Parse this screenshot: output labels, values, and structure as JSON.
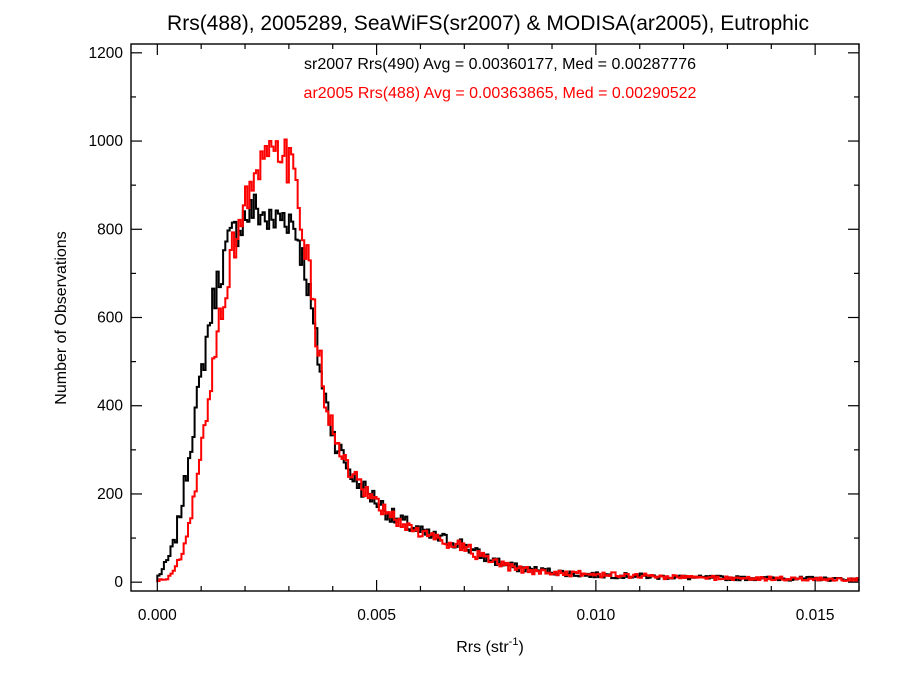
{
  "chart_data": {
    "type": "line",
    "subtype": "step-histogram",
    "title": "Rrs(488), 2005289, SeaWiFS(sr2007) & MODISA(ar2005), Eutrophic",
    "xlabel": "Rrs (str",
    "xlabel_sup": "-1",
    "xlabel_close": ")",
    "ylabel": "Number of Observations",
    "xlim": [
      -0.0006,
      0.016
    ],
    "ylim": [
      -20,
      1220
    ],
    "x_ticks": [
      0.0,
      0.005,
      0.01,
      0.015
    ],
    "x_tick_labels": [
      "0.000",
      "0.005",
      "0.010",
      "0.015"
    ],
    "y_ticks": [
      0,
      200,
      400,
      600,
      800,
      1000,
      1200
    ],
    "y_tick_labels": [
      "0",
      "200",
      "400",
      "600",
      "800",
      "1000",
      "1200"
    ],
    "grid": false,
    "legend": "top-center",
    "series": [
      {
        "name": "sr2007 Rrs(490)",
        "label": "sr2007 Rrs(490) Avg = 0.00360177, Med = 0.00287776",
        "color": "#000000",
        "points": [
          [
            0.0,
            10
          ],
          [
            0.0002,
            40
          ],
          [
            0.0004,
            90
          ],
          [
            0.0006,
            200
          ],
          [
            0.0008,
            340
          ],
          [
            0.001,
            460
          ],
          [
            0.0012,
            600
          ],
          [
            0.0014,
            690
          ],
          [
            0.0016,
            760
          ],
          [
            0.0018,
            800
          ],
          [
            0.002,
            830
          ],
          [
            0.0022,
            845
          ],
          [
            0.0024,
            835
          ],
          [
            0.0026,
            810
          ],
          [
            0.0028,
            830
          ],
          [
            0.003,
            830
          ],
          [
            0.0032,
            790
          ],
          [
            0.0034,
            700
          ],
          [
            0.0036,
            560
          ],
          [
            0.0038,
            430
          ],
          [
            0.004,
            340
          ],
          [
            0.0042,
            290
          ],
          [
            0.0044,
            250
          ],
          [
            0.0046,
            220
          ],
          [
            0.0048,
            205
          ],
          [
            0.005,
            185
          ],
          [
            0.0052,
            165
          ],
          [
            0.0054,
            145
          ],
          [
            0.0056,
            135
          ],
          [
            0.0058,
            125
          ],
          [
            0.006,
            112
          ],
          [
            0.0062,
            105
          ],
          [
            0.0064,
            100
          ],
          [
            0.0066,
            95
          ],
          [
            0.0068,
            92
          ],
          [
            0.007,
            85
          ],
          [
            0.0072,
            70
          ],
          [
            0.0074,
            60
          ],
          [
            0.0076,
            52
          ],
          [
            0.0078,
            45
          ],
          [
            0.008,
            38
          ],
          [
            0.0082,
            33
          ],
          [
            0.0084,
            30
          ],
          [
            0.0086,
            28
          ],
          [
            0.0088,
            26
          ],
          [
            0.009,
            24
          ],
          [
            0.0092,
            22
          ],
          [
            0.0094,
            20
          ],
          [
            0.0096,
            18
          ],
          [
            0.0098,
            17
          ],
          [
            0.01,
            16
          ],
          [
            0.0102,
            16
          ],
          [
            0.0104,
            15
          ],
          [
            0.0106,
            15
          ],
          [
            0.0108,
            14
          ],
          [
            0.011,
            14
          ],
          [
            0.0112,
            13
          ],
          [
            0.0114,
            12
          ],
          [
            0.0116,
            12
          ],
          [
            0.0118,
            11
          ],
          [
            0.012,
            11
          ],
          [
            0.0122,
            10
          ],
          [
            0.0124,
            10
          ],
          [
            0.0126,
            10
          ],
          [
            0.0128,
            10
          ],
          [
            0.013,
            9
          ],
          [
            0.0132,
            9
          ],
          [
            0.0134,
            9
          ],
          [
            0.0136,
            9
          ],
          [
            0.0138,
            9
          ],
          [
            0.014,
            8
          ],
          [
            0.0142,
            8
          ],
          [
            0.0144,
            8
          ],
          [
            0.0146,
            8
          ],
          [
            0.0148,
            8
          ],
          [
            0.015,
            8
          ],
          [
            0.0152,
            7
          ],
          [
            0.0154,
            7
          ],
          [
            0.0156,
            7
          ],
          [
            0.0158,
            7
          ],
          [
            0.016,
            7
          ]
        ]
      },
      {
        "name": "ar2005 Rrs(488)",
        "label": "ar2005 Rrs(488) Avg = 0.00363865, Med = 0.00290522",
        "color": "#ff0000",
        "points": [
          [
            0.0,
            2
          ],
          [
            0.0002,
            8
          ],
          [
            0.0004,
            25
          ],
          [
            0.0006,
            70
          ],
          [
            0.0008,
            160
          ],
          [
            0.001,
            290
          ],
          [
            0.0012,
            440
          ],
          [
            0.0014,
            580
          ],
          [
            0.0016,
            690
          ],
          [
            0.0018,
            790
          ],
          [
            0.002,
            860
          ],
          [
            0.0022,
            910
          ],
          [
            0.0024,
            940
          ],
          [
            0.0026,
            960
          ],
          [
            0.0028,
            975
          ],
          [
            0.003,
            950
          ],
          [
            0.0032,
            880
          ],
          [
            0.0034,
            760
          ],
          [
            0.0036,
            580
          ],
          [
            0.0038,
            440
          ],
          [
            0.004,
            340
          ],
          [
            0.0042,
            285
          ],
          [
            0.0044,
            245
          ],
          [
            0.0046,
            215
          ],
          [
            0.0048,
            195
          ],
          [
            0.005,
            175
          ],
          [
            0.0052,
            158
          ],
          [
            0.0054,
            142
          ],
          [
            0.0056,
            132
          ],
          [
            0.0058,
            122
          ],
          [
            0.006,
            112
          ],
          [
            0.0062,
            105
          ],
          [
            0.0064,
            98
          ],
          [
            0.0066,
            92
          ],
          [
            0.0068,
            88
          ],
          [
            0.007,
            80
          ],
          [
            0.0072,
            68
          ],
          [
            0.0074,
            56
          ],
          [
            0.0076,
            48
          ],
          [
            0.0078,
            40
          ],
          [
            0.008,
            34
          ],
          [
            0.0082,
            30
          ],
          [
            0.0084,
            27
          ],
          [
            0.0086,
            25
          ],
          [
            0.0088,
            23
          ],
          [
            0.009,
            22
          ],
          [
            0.0092,
            21
          ],
          [
            0.0094,
            20
          ],
          [
            0.0096,
            19
          ],
          [
            0.0098,
            18
          ],
          [
            0.01,
            17
          ],
          [
            0.0102,
            17
          ],
          [
            0.0104,
            16
          ],
          [
            0.0106,
            16
          ],
          [
            0.0108,
            15
          ],
          [
            0.011,
            15
          ],
          [
            0.0112,
            14
          ],
          [
            0.0114,
            13
          ],
          [
            0.0116,
            12
          ],
          [
            0.0118,
            12
          ],
          [
            0.012,
            11
          ],
          [
            0.0122,
            11
          ],
          [
            0.0124,
            10
          ],
          [
            0.0126,
            10
          ],
          [
            0.0128,
            10
          ],
          [
            0.013,
            9
          ],
          [
            0.0132,
            9
          ],
          [
            0.0134,
            9
          ],
          [
            0.0136,
            9
          ],
          [
            0.0138,
            8
          ],
          [
            0.014,
            8
          ],
          [
            0.0142,
            8
          ],
          [
            0.0144,
            8
          ],
          [
            0.0146,
            7
          ],
          [
            0.0148,
            7
          ],
          [
            0.015,
            7
          ],
          [
            0.0152,
            7
          ],
          [
            0.0154,
            7
          ],
          [
            0.0156,
            6
          ],
          [
            0.0158,
            6
          ],
          [
            0.016,
            6
          ]
        ]
      }
    ]
  }
}
